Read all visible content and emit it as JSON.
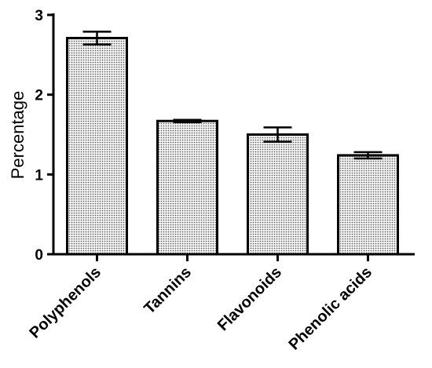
{
  "chart_data": {
    "type": "bar",
    "title": "",
    "xlabel": "",
    "ylabel": "Percentage",
    "ylim": [
      0,
      3
    ],
    "yticks": [
      0,
      1,
      2,
      3
    ],
    "categories": [
      "Polyphenols",
      "Tannins",
      "Flavonoids",
      "Phenolic acids"
    ],
    "values": [
      2.71,
      1.67,
      1.5,
      1.24
    ],
    "errors": [
      0.08,
      0.015,
      0.09,
      0.04
    ],
    "bar_fill": "dotted-gray",
    "grid": false,
    "legend": "none"
  }
}
